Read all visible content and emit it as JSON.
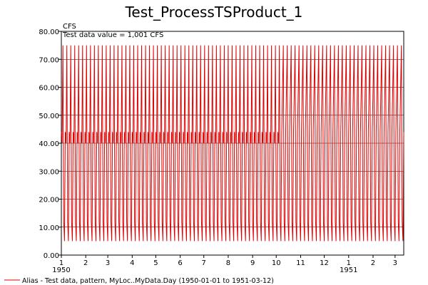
{
  "chart_data": {
    "type": "line",
    "title": "Test_ProcessTSProduct_1",
    "ylabel": "CFS",
    "annotation": "Test data value = 1,001 CFS",
    "ylim": [
      0,
      80
    ],
    "y_ticks": [
      "0.00",
      "10.00",
      "20.00",
      "30.00",
      "40.00",
      "50.00",
      "60.00",
      "70.00",
      "80.00"
    ],
    "x_tick_labels": [
      "1",
      "2",
      "3",
      "4",
      "5",
      "6",
      "7",
      "8",
      "9",
      "10",
      "11",
      "12",
      "1",
      "2",
      "3"
    ],
    "year_labels": [
      {
        "label": "1950",
        "at_tick": 0
      },
      {
        "label": "1951",
        "at_tick": 12
      }
    ],
    "grid": true,
    "series": [
      {
        "name": "Alias - Test data, pattern, MyLoc..MyData.Day (1950-01-01 to 1951-03-12)",
        "color": "#e00000",
        "pattern_period_days": 5,
        "pattern_values_first_part": [
          44,
          40,
          75,
          12,
          5
        ],
        "pattern_values_second_part": [
          44,
          59.5,
          75,
          12,
          5
        ],
        "second_part_starts_day": 280
      }
    ]
  }
}
